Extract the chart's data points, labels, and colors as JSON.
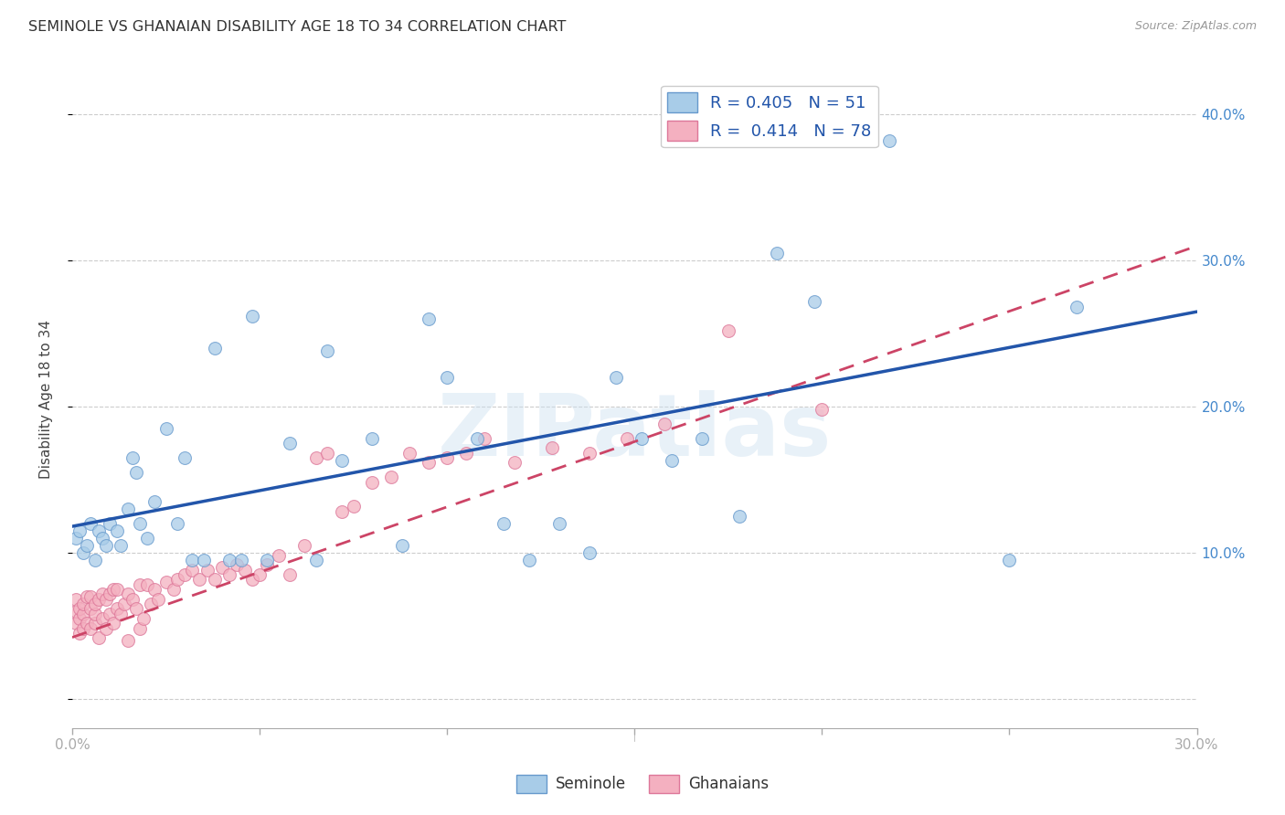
{
  "title": "SEMINOLE VS GHANAIAN DISABILITY AGE 18 TO 34 CORRELATION CHART",
  "source": "Source: ZipAtlas.com",
  "ylabel": "Disability Age 18 to 34",
  "xlim": [
    0.0,
    0.3
  ],
  "ylim": [
    -0.02,
    0.43
  ],
  "seminole_color": "#a8cce8",
  "ghanaian_color": "#f4b0c0",
  "seminole_edge": "#6699cc",
  "ghanaian_edge": "#dd7799",
  "seminole_R": 0.405,
  "seminole_N": 51,
  "ghanaian_R": 0.414,
  "ghanaian_N": 78,
  "watermark": "ZIPatlas",
  "background_color": "#ffffff",
  "grid_color": "#cccccc",
  "seminole_line_color": "#2255aa",
  "ghanaian_line_color": "#cc4466",
  "seminole_x": [
    0.001,
    0.002,
    0.003,
    0.004,
    0.005,
    0.006,
    0.007,
    0.008,
    0.009,
    0.01,
    0.012,
    0.013,
    0.015,
    0.016,
    0.017,
    0.018,
    0.02,
    0.022,
    0.025,
    0.028,
    0.03,
    0.032,
    0.035,
    0.038,
    0.042,
    0.045,
    0.048,
    0.052,
    0.058,
    0.065,
    0.068,
    0.072,
    0.08,
    0.088,
    0.095,
    0.1,
    0.108,
    0.115,
    0.122,
    0.13,
    0.138,
    0.145,
    0.152,
    0.16,
    0.168,
    0.178,
    0.188,
    0.198,
    0.218,
    0.25,
    0.268
  ],
  "seminole_y": [
    0.11,
    0.115,
    0.1,
    0.105,
    0.12,
    0.095,
    0.115,
    0.11,
    0.105,
    0.12,
    0.115,
    0.105,
    0.13,
    0.165,
    0.155,
    0.12,
    0.11,
    0.135,
    0.185,
    0.12,
    0.165,
    0.095,
    0.095,
    0.24,
    0.095,
    0.095,
    0.262,
    0.095,
    0.175,
    0.095,
    0.238,
    0.163,
    0.178,
    0.105,
    0.26,
    0.22,
    0.178,
    0.12,
    0.095,
    0.12,
    0.1,
    0.22,
    0.178,
    0.163,
    0.178,
    0.125,
    0.305,
    0.272,
    0.382,
    0.095,
    0.268
  ],
  "ghanaian_x": [
    0.001,
    0.001,
    0.001,
    0.002,
    0.002,
    0.002,
    0.003,
    0.003,
    0.003,
    0.004,
    0.004,
    0.005,
    0.005,
    0.005,
    0.006,
    0.006,
    0.006,
    0.007,
    0.007,
    0.008,
    0.008,
    0.009,
    0.009,
    0.01,
    0.01,
    0.011,
    0.011,
    0.012,
    0.012,
    0.013,
    0.014,
    0.015,
    0.015,
    0.016,
    0.017,
    0.018,
    0.018,
    0.019,
    0.02,
    0.021,
    0.022,
    0.023,
    0.025,
    0.027,
    0.028,
    0.03,
    0.032,
    0.034,
    0.036,
    0.038,
    0.04,
    0.042,
    0.044,
    0.046,
    0.048,
    0.05,
    0.052,
    0.055,
    0.058,
    0.062,
    0.065,
    0.068,
    0.072,
    0.075,
    0.08,
    0.085,
    0.09,
    0.095,
    0.1,
    0.105,
    0.11,
    0.118,
    0.128,
    0.138,
    0.148,
    0.158,
    0.175,
    0.2
  ],
  "ghanaian_y": [
    0.052,
    0.06,
    0.068,
    0.055,
    0.062,
    0.045,
    0.058,
    0.065,
    0.048,
    0.052,
    0.07,
    0.048,
    0.062,
    0.07,
    0.052,
    0.058,
    0.065,
    0.042,
    0.068,
    0.055,
    0.072,
    0.048,
    0.068,
    0.058,
    0.072,
    0.052,
    0.075,
    0.062,
    0.075,
    0.058,
    0.065,
    0.04,
    0.072,
    0.068,
    0.062,
    0.078,
    0.048,
    0.055,
    0.078,
    0.065,
    0.075,
    0.068,
    0.08,
    0.075,
    0.082,
    0.085,
    0.088,
    0.082,
    0.088,
    0.082,
    0.09,
    0.085,
    0.092,
    0.088,
    0.082,
    0.085,
    0.092,
    0.098,
    0.085,
    0.105,
    0.165,
    0.168,
    0.128,
    0.132,
    0.148,
    0.152,
    0.168,
    0.162,
    0.165,
    0.168,
    0.178,
    0.162,
    0.172,
    0.168,
    0.178,
    0.188,
    0.252,
    0.198
  ],
  "sem_line_x0": 0.0,
  "sem_line_y0": 0.118,
  "sem_line_x1": 0.3,
  "sem_line_y1": 0.265,
  "gha_line_x0": 0.0,
  "gha_line_y0": 0.042,
  "gha_line_x1": 0.3,
  "gha_line_y1": 0.31
}
